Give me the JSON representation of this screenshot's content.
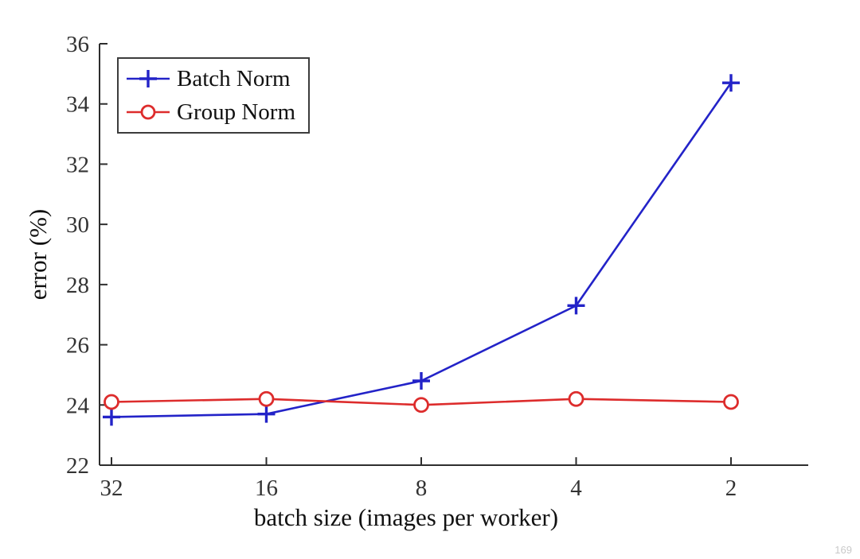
{
  "watermark": "169",
  "chart_data": {
    "type": "line",
    "title": "",
    "xlabel": "batch size (images per worker)",
    "ylabel": "error (%)",
    "x_categories": [
      "32",
      "16",
      "8",
      "4",
      "2"
    ],
    "ylim": [
      22,
      36
    ],
    "yticks": [
      22,
      24,
      26,
      28,
      30,
      32,
      34,
      36
    ],
    "grid": false,
    "legend_position": "top-left",
    "series": [
      {
        "name": "Batch Norm",
        "color": "#2323c8",
        "marker": "plus",
        "values": [
          23.6,
          23.7,
          24.8,
          27.3,
          34.7
        ]
      },
      {
        "name": "Group Norm",
        "color": "#dd2c2c",
        "marker": "circle",
        "values": [
          24.1,
          24.2,
          24.0,
          24.2,
          24.1
        ]
      }
    ]
  }
}
